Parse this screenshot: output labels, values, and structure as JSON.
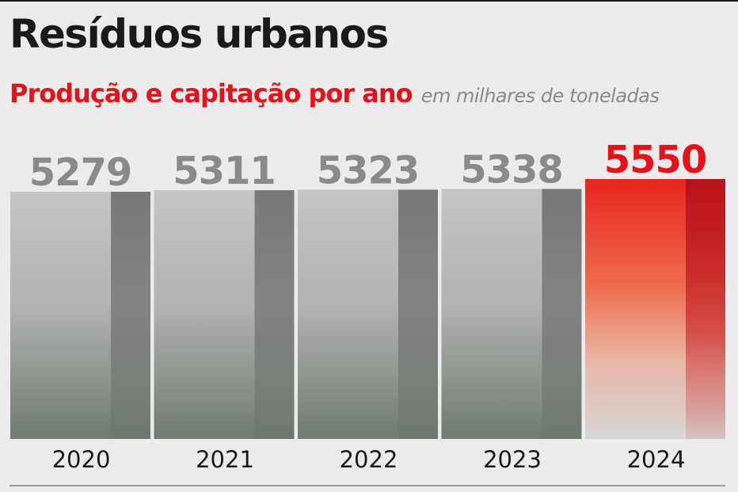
{
  "header": {
    "title": "Resíduos urbanos",
    "subtitle": "Produção e capitação por ano",
    "unit": "em milhares de toneladas"
  },
  "colors": {
    "normal_value": "#8a8a8a",
    "highlight_value": "#e3121b",
    "highlight_bar": "#e8261f",
    "axis_text": "#1a1a1a"
  },
  "chart_data": {
    "type": "bar",
    "title": "Resíduos urbanos",
    "subtitle": "Produção e capitação por ano",
    "ylabel": "em milhares de toneladas",
    "categories": [
      "2020",
      "2021",
      "2022",
      "2023",
      "2024"
    ],
    "series": [
      {
        "values": [
          5279,
          5311,
          5323,
          5338,
          5550
        ]
      }
    ],
    "highlight_category": "2024",
    "grid": false,
    "legend": "none"
  }
}
